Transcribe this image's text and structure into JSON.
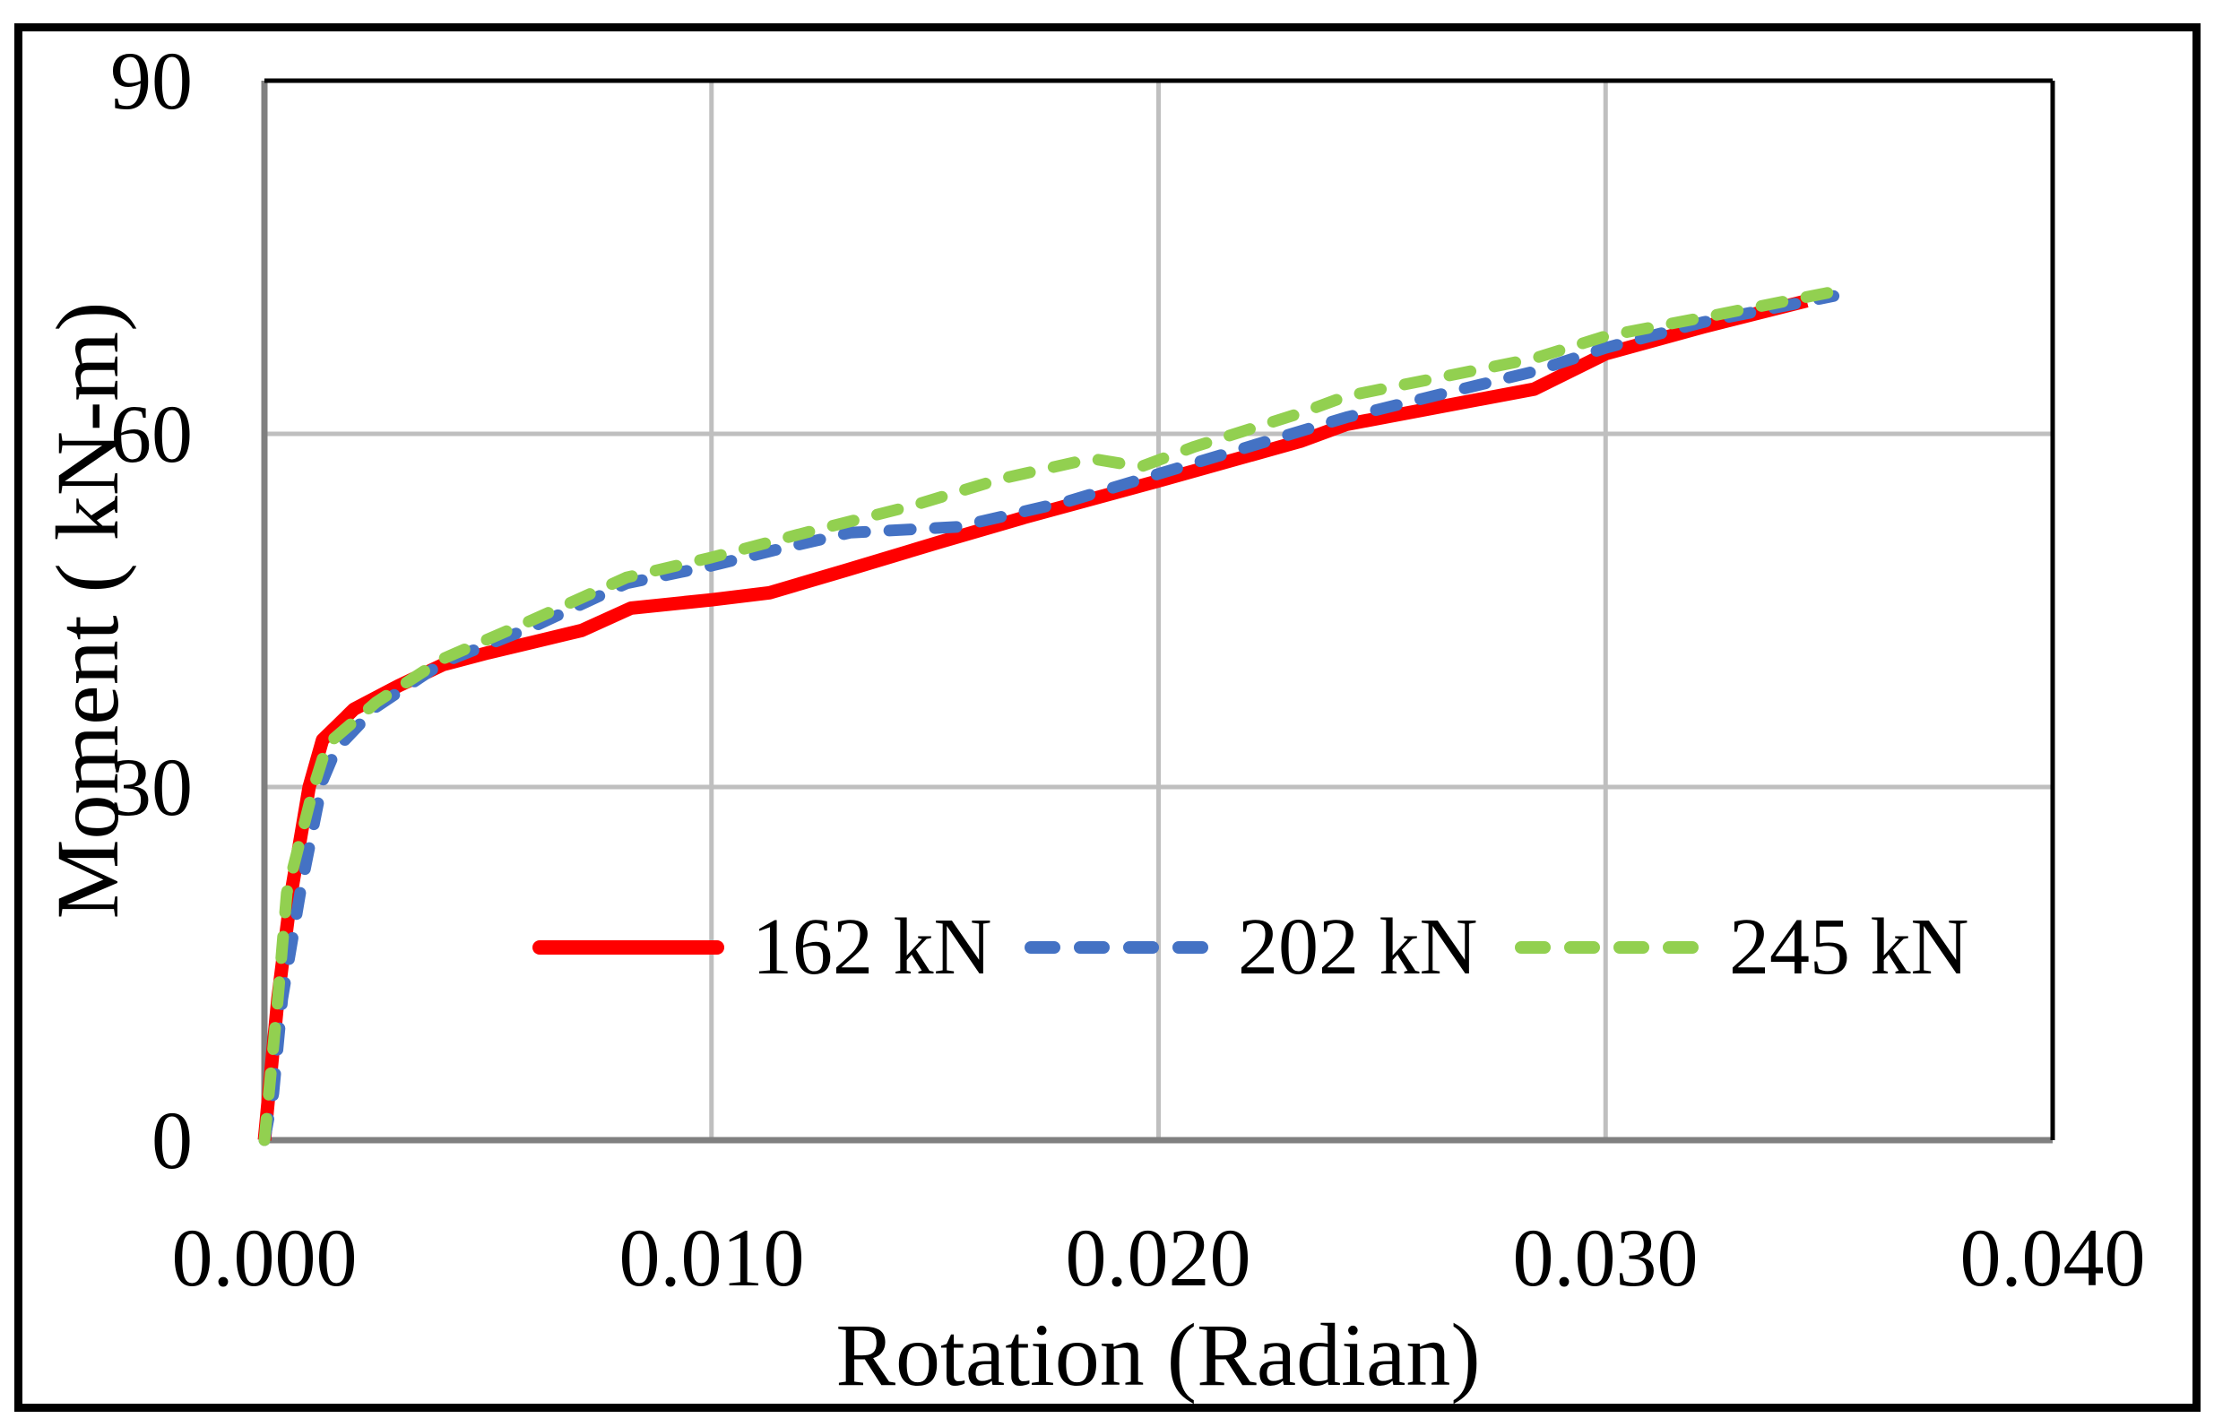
{
  "chart_data": {
    "type": "line",
    "title": "",
    "xlabel": "Rotation (Radian)",
    "ylabel": "Moment ( kN-m)",
    "xlim": [
      0,
      0.04
    ],
    "ylim": [
      0,
      90
    ],
    "x_tick_values": [
      0,
      0.01,
      0.02,
      0.03,
      0.04
    ],
    "x_tick_labels": [
      "0.000",
      "0.010",
      "0.020",
      "0.030",
      "0.040"
    ],
    "y_tick_values": [
      0,
      30,
      60,
      90
    ],
    "y_tick_labels": [
      "0",
      "30",
      "60",
      "90"
    ],
    "x_gridlines": [
      0.01,
      0.02,
      0.03
    ],
    "y_gridlines": [
      30,
      60
    ],
    "grid": true,
    "legend_position": "inside lower-center",
    "colors": {
      "grid": "#BFBFBF",
      "axis": "#808080",
      "plot_border": "#000000"
    },
    "series": [
      {
        "name": "162 kN",
        "color": "#FF0000",
        "style": "solid",
        "points": [
          [
            0.0,
            0
          ],
          [
            0.0001,
            4
          ],
          [
            0.0003,
            12
          ],
          [
            0.0006,
            21
          ],
          [
            0.001,
            30
          ],
          [
            0.0013,
            34
          ],
          [
            0.002,
            36.6
          ],
          [
            0.003,
            38.6
          ],
          [
            0.004,
            40.4
          ],
          [
            0.005,
            41.4
          ],
          [
            0.006,
            42.3
          ],
          [
            0.0071,
            43.3
          ],
          [
            0.0082,
            45.2
          ],
          [
            0.01,
            45.9
          ],
          [
            0.0113,
            46.5
          ],
          [
            0.013,
            48.4
          ],
          [
            0.0151,
            50.8
          ],
          [
            0.017,
            52.9
          ],
          [
            0.02,
            56.0
          ],
          [
            0.0232,
            59.4
          ],
          [
            0.0242,
            60.8
          ],
          [
            0.0284,
            63.8
          ],
          [
            0.03,
            66.8
          ],
          [
            0.0322,
            69.1
          ],
          [
            0.0345,
            71.3
          ]
        ]
      },
      {
        "name": "202 kN",
        "color": "#4472C4",
        "style": "dashed",
        "points": [
          [
            0.0,
            0
          ],
          [
            0.0002,
            4
          ],
          [
            0.0004,
            12
          ],
          [
            0.0008,
            21
          ],
          [
            0.0013,
            30.5
          ],
          [
            0.0016,
            33.2
          ],
          [
            0.0025,
            36.8
          ],
          [
            0.004,
            40.6
          ],
          [
            0.006,
            43.6
          ],
          [
            0.0081,
            47.3
          ],
          [
            0.01,
            48.8
          ],
          [
            0.0115,
            50.2
          ],
          [
            0.0131,
            51.6
          ],
          [
            0.0155,
            52.1
          ],
          [
            0.018,
            54.3
          ],
          [
            0.02,
            56.6
          ],
          [
            0.0242,
            61.4
          ],
          [
            0.0284,
            65.3
          ],
          [
            0.03,
            67.3
          ],
          [
            0.0322,
            69.5
          ],
          [
            0.0351,
            71.7
          ]
        ]
      },
      {
        "name": "245 kN",
        "color": "#92D050",
        "style": "dashed",
        "points": [
          [
            0.0,
            0
          ],
          [
            0.0001,
            4
          ],
          [
            0.0003,
            12
          ],
          [
            0.0005,
            21
          ],
          [
            0.0011,
            30
          ],
          [
            0.0014,
            33.6
          ],
          [
            0.0025,
            37.2
          ],
          [
            0.004,
            40.9
          ],
          [
            0.006,
            44.2
          ],
          [
            0.0081,
            47.8
          ],
          [
            0.01,
            49.5
          ],
          [
            0.012,
            51.5
          ],
          [
            0.0145,
            53.9
          ],
          [
            0.0165,
            56.2
          ],
          [
            0.0185,
            57.9
          ],
          [
            0.0196,
            57.2
          ],
          [
            0.0208,
            58.9
          ],
          [
            0.0232,
            61.8
          ],
          [
            0.0242,
            63.2
          ],
          [
            0.0284,
            66.4
          ],
          [
            0.03,
            68.3
          ],
          [
            0.0322,
            69.9
          ],
          [
            0.035,
            72.0
          ]
        ]
      }
    ]
  }
}
